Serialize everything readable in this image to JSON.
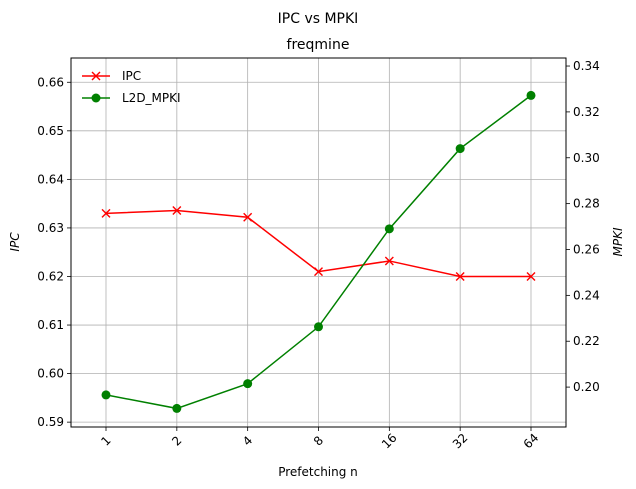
{
  "chart_data": {
    "type": "line",
    "suptitle": "IPC vs MPKI",
    "title": "freqmine",
    "xlabel": "Prefetching n",
    "ylabel_left": "IPC",
    "ylabel_right": "MPKI",
    "categories": [
      "1",
      "2",
      "4",
      "8",
      "16",
      "32",
      "64"
    ],
    "ylim_left": [
      0.589,
      0.665
    ],
    "yticks_left": [
      "0.59",
      "0.60",
      "0.61",
      "0.62",
      "0.63",
      "0.64",
      "0.65",
      "0.66"
    ],
    "ylim_right": [
      0.1826,
      0.3435
    ],
    "yticks_right": [
      "0.20",
      "0.22",
      "0.24",
      "0.26",
      "0.28",
      "0.30",
      "0.32",
      "0.34"
    ],
    "grid": true,
    "legend_position": "top-left",
    "series": [
      {
        "name": "IPC",
        "axis": "left",
        "color": "#ff0000",
        "marker": "x",
        "values": [
          0.633,
          0.6336,
          0.6322,
          0.621,
          0.6232,
          0.62,
          0.62
        ]
      },
      {
        "name": "L2D_MPKI",
        "axis": "right",
        "color": "#008000",
        "marker": "o",
        "values": [
          0.1966,
          0.1907,
          0.2015,
          0.2263,
          0.269,
          0.304,
          0.3272
        ]
      }
    ]
  }
}
